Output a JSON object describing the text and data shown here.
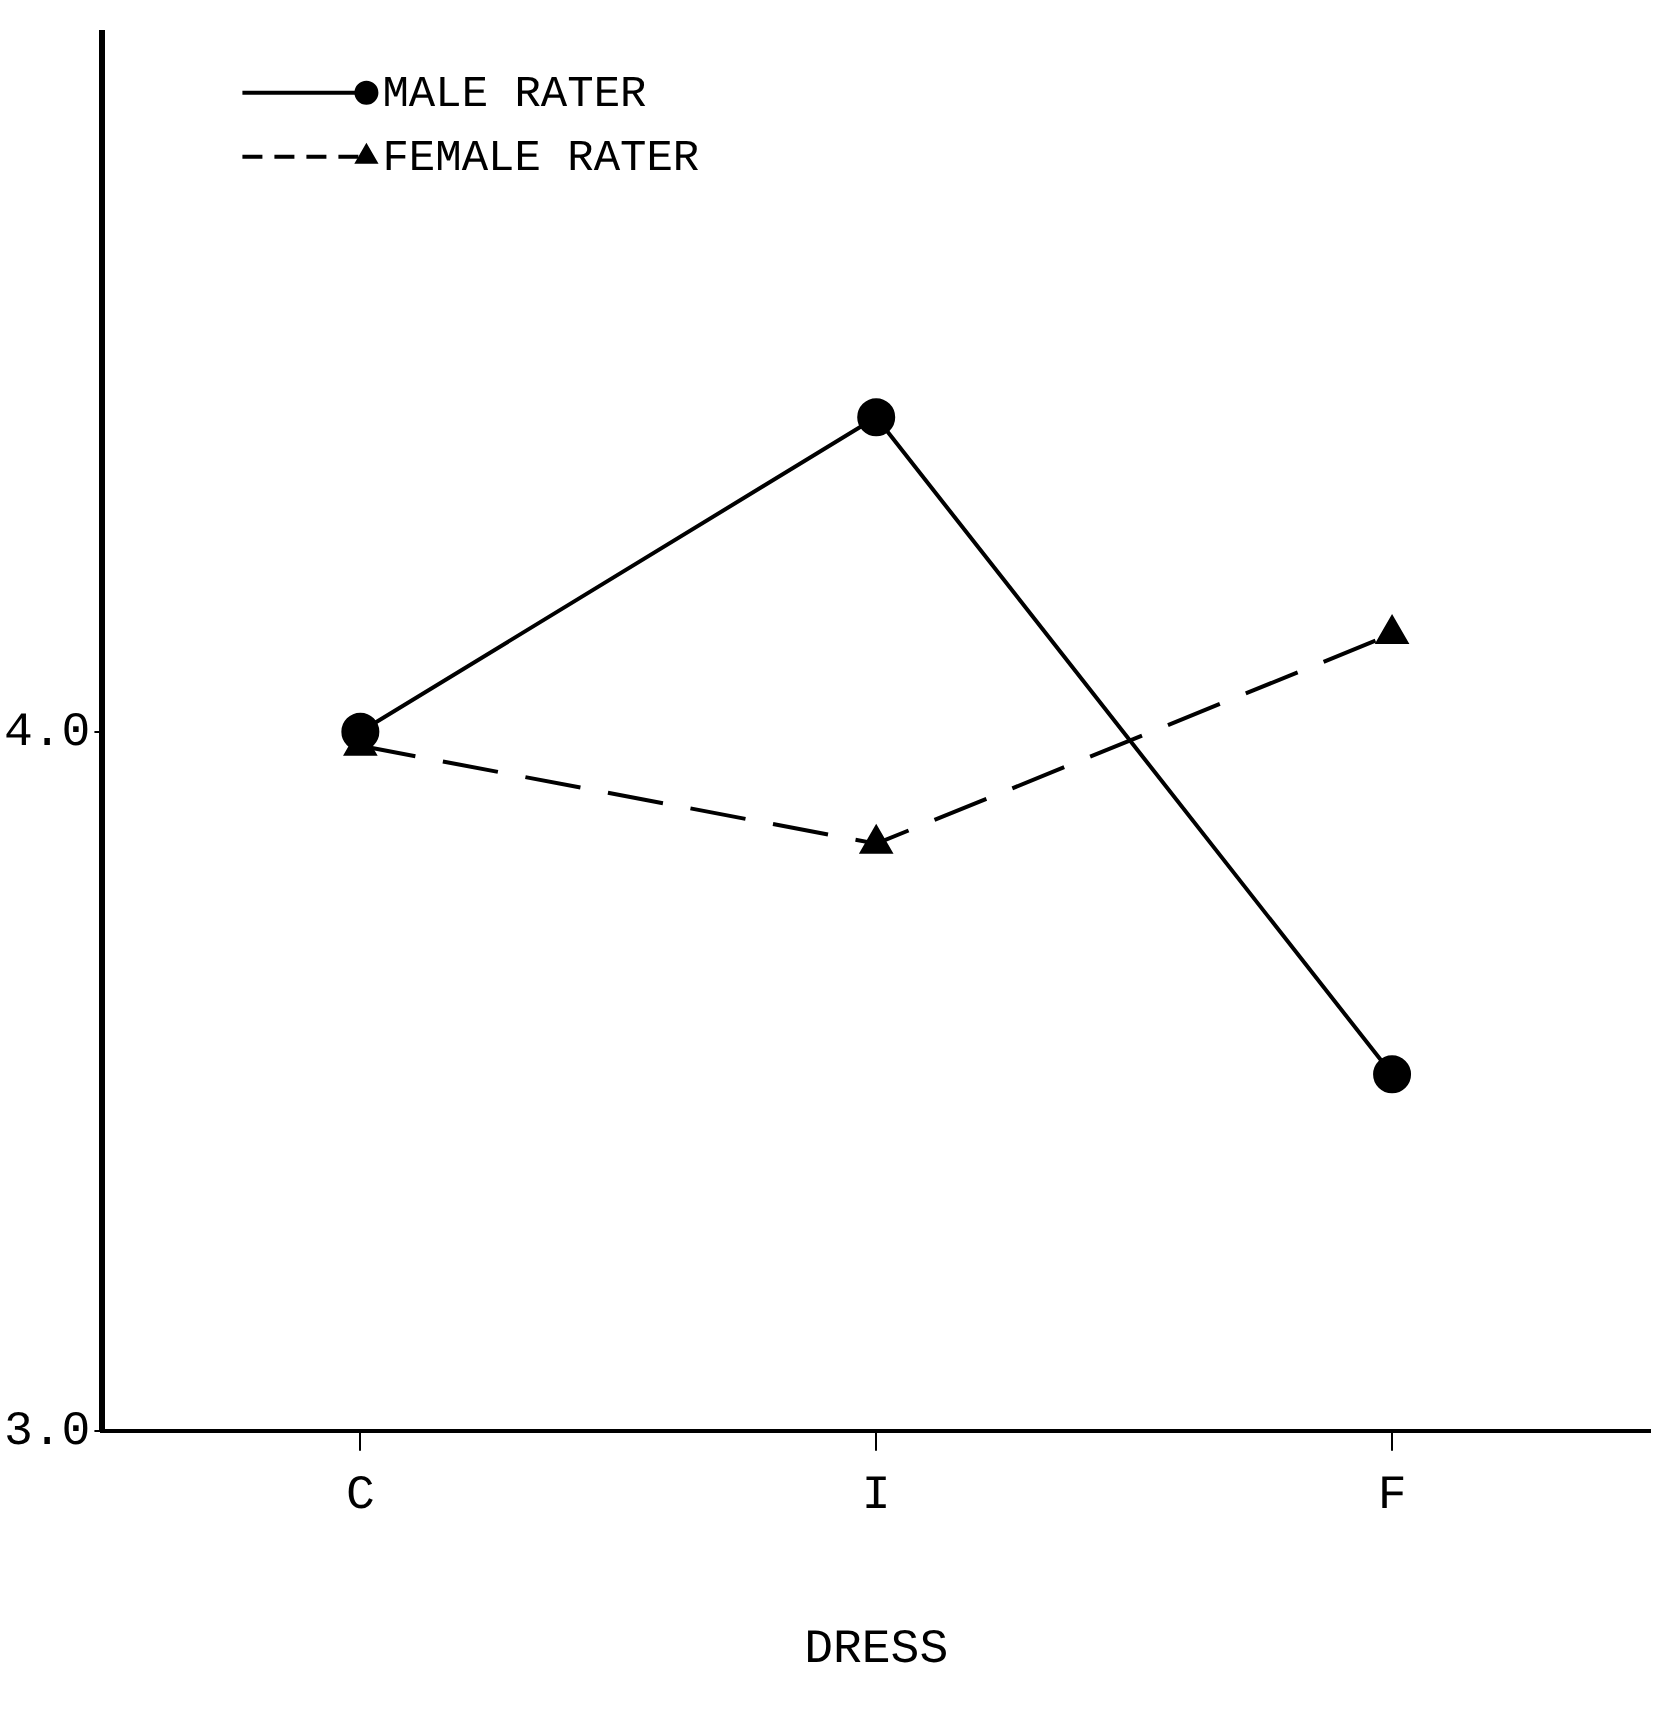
{
  "chart_data": {
    "type": "line",
    "xlabel": "DRESS",
    "categories": [
      "C",
      "I",
      "F"
    ],
    "series": [
      {
        "name": "MALE RATER",
        "color": "#000000",
        "values": [
          4.0,
          4.45,
          3.51
        ],
        "marker": "circle",
        "line_style": "solid"
      },
      {
        "name": "FEMALE RATER",
        "color": "#000000",
        "values": [
          3.98,
          3.84,
          4.14
        ],
        "marker": "triangle",
        "line_style": "dashed"
      }
    ],
    "ylim": [
      3,
      5
    ],
    "yticks": [
      {
        "value": 3,
        "label": "3.0"
      },
      {
        "value": 4,
        "label": "4.0"
      }
    ],
    "grid": false,
    "legend": "top left"
  }
}
